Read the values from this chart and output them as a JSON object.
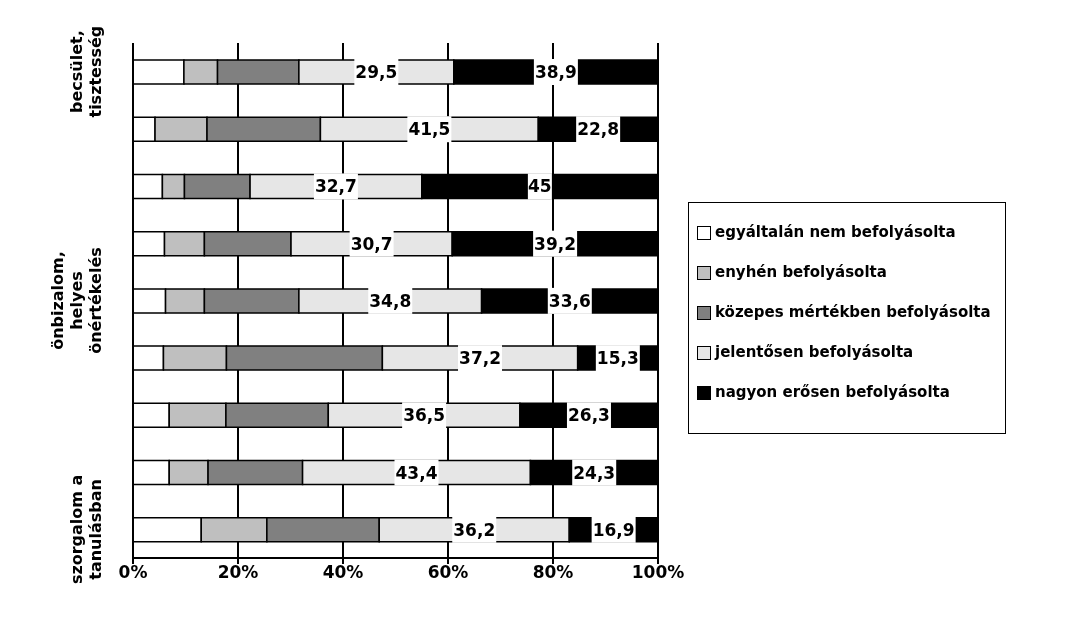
{
  "chart_data": {
    "type": "bar",
    "orientation": "horizontal",
    "stacked": true,
    "categories": [
      "becsület, tisztesség",
      null,
      null,
      null,
      "önbizalom, helyes önértékelés",
      null,
      null,
      null,
      "szorgalom a tanulásban"
    ],
    "series": [
      {
        "name": "egyáltalán nem befolyásolta",
        "color": "#ffffff",
        "values": [
          9.7,
          4.2,
          5.6,
          6.0,
          6.2,
          5.8,
          6.9,
          6.9,
          13.0
        ]
      },
      {
        "name": "enyhén befolyásolta",
        "color": "#bfbfbf",
        "values": [
          6.4,
          9.9,
          4.2,
          7.6,
          7.4,
          12.0,
          10.8,
          7.4,
          12.5
        ]
      },
      {
        "name": "közepes mértékben befolyásolta",
        "color": "#808080",
        "values": [
          15.5,
          21.6,
          12.5,
          16.5,
          18.0,
          29.7,
          19.5,
          18.0,
          21.4
        ]
      },
      {
        "name": "jelentősen befolyásolta",
        "color": "#e6e6e6",
        "values": [
          29.5,
          41.5,
          32.7,
          30.7,
          34.8,
          37.2,
          36.5,
          43.4,
          36.2
        ],
        "value_labels": [
          "29,5",
          "41,5",
          "32,7",
          "30,7",
          "34,8",
          "37,2",
          "36,5",
          "43,4",
          "36,2"
        ]
      },
      {
        "name": "nagyon erősen befolyásolta",
        "color": "#000000",
        "values": [
          38.9,
          22.8,
          45,
          39.2,
          33.6,
          15.3,
          26.3,
          24.3,
          16.9
        ],
        "value_labels": [
          "38,9",
          "22,8",
          "45",
          "39,2",
          "33,6",
          "15,3",
          "26,3",
          "24,3",
          "16,9"
        ]
      }
    ],
    "xlim": [
      0,
      100
    ],
    "xticks": [
      {
        "value": 0,
        "label": "0%"
      },
      {
        "value": 20,
        "label": "20%"
      },
      {
        "value": 40,
        "label": "40%"
      },
      {
        "value": 60,
        "label": "60%"
      },
      {
        "value": 80,
        "label": "80%"
      },
      {
        "value": 100,
        "label": "100%"
      }
    ],
    "grid": "x",
    "legend": "right"
  }
}
